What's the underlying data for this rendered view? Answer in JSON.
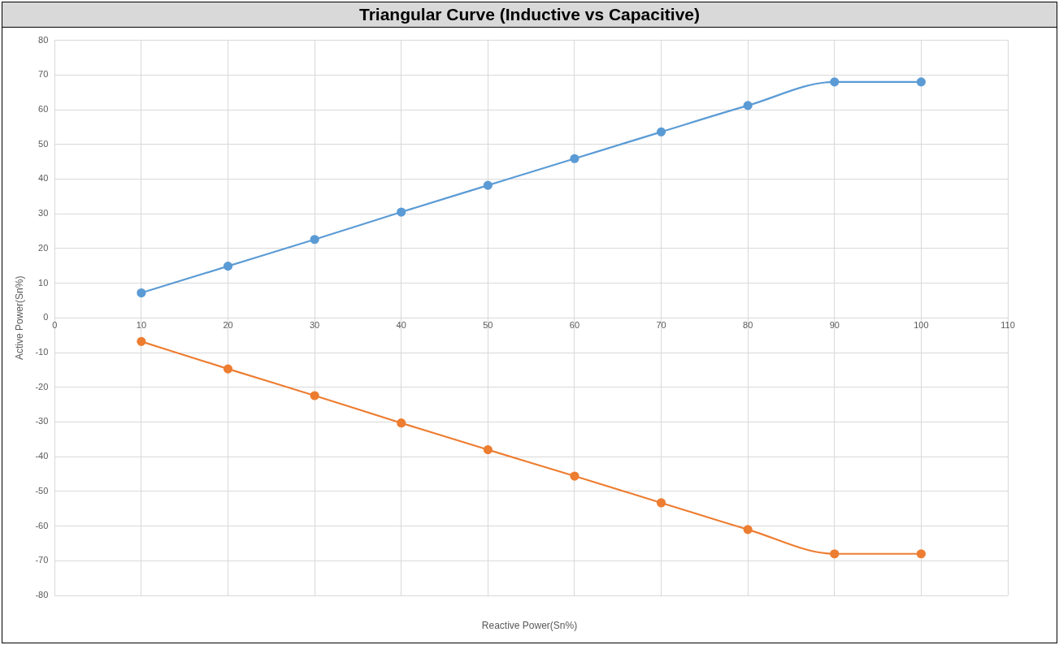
{
  "chart_data": {
    "type": "line",
    "title": "Triangular Curve (Inductive vs Capacitive)",
    "xlabel": "Reactive Power(Sn%)",
    "ylabel": "Active Power(Sn%)",
    "x": [
      10,
      20,
      30,
      40,
      50,
      60,
      70,
      80,
      90,
      100
    ],
    "series": [
      {
        "color": "#5b9bd5",
        "values": [
          7.2,
          14.9,
          22.6,
          30.5,
          38.2,
          45.9,
          53.6,
          61.2,
          68.0,
          68.0
        ]
      },
      {
        "color": "#ed7d31",
        "values": [
          -6.8,
          -14.7,
          -22.4,
          -30.3,
          -38.0,
          -45.6,
          -53.3,
          -61.0,
          -68.0,
          -68.0
        ]
      }
    ],
    "xlim": [
      0,
      110
    ],
    "xticks": [
      0,
      10,
      20,
      30,
      40,
      50,
      60,
      70,
      80,
      90,
      100,
      110
    ],
    "ylim": [
      -80,
      80
    ],
    "yticks": [
      -80,
      -70,
      -60,
      -50,
      -40,
      -30,
      -20,
      -10,
      0,
      10,
      20,
      30,
      40,
      50,
      60,
      70,
      80
    ],
    "grid": true,
    "legend": false,
    "marker": "circle",
    "line_style": "solid"
  }
}
